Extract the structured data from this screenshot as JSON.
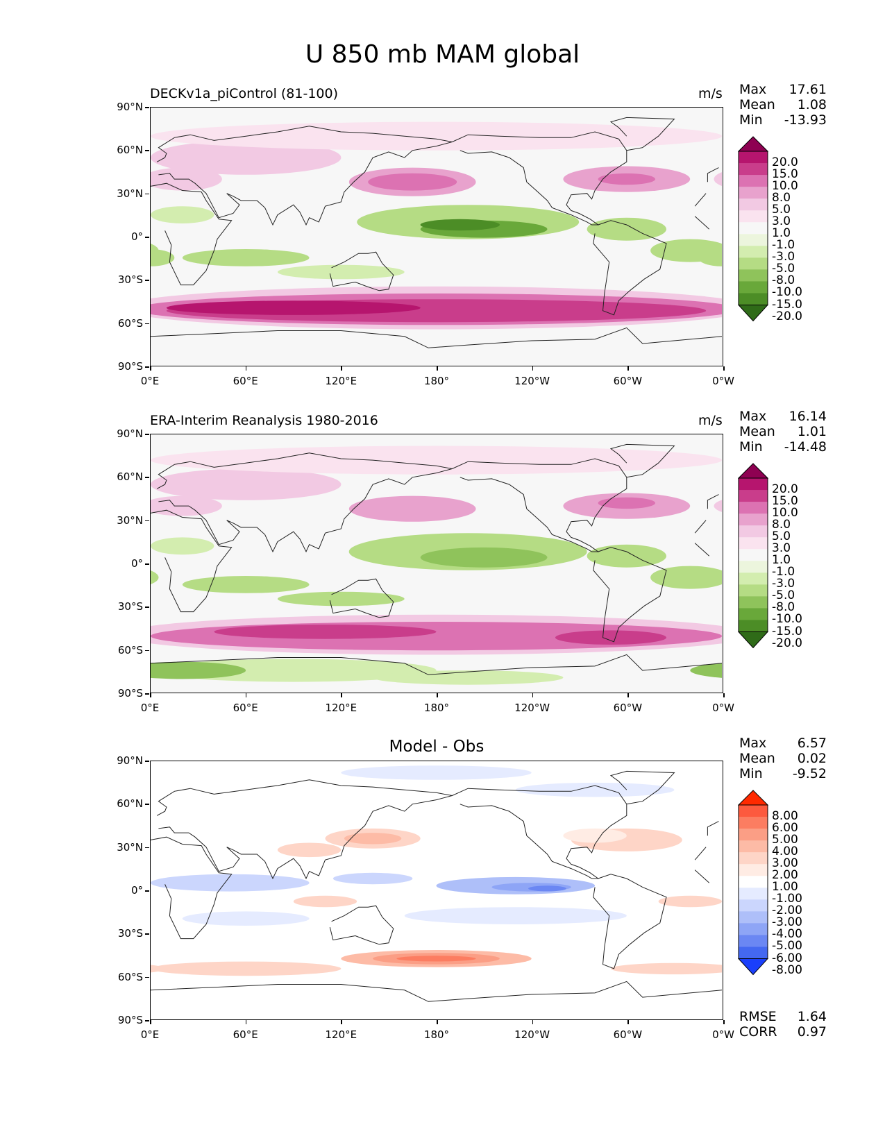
{
  "title": "U 850 mb MAM global",
  "y_ticks": [
    "90°N",
    "60°N",
    "30°N",
    "0°",
    "30°S",
    "60°S",
    "90°S"
  ],
  "x_ticks": [
    "0°E",
    "60°E",
    "120°E",
    "180°",
    "120°W",
    "60°W",
    "0°W"
  ],
  "panels": [
    {
      "name": "model",
      "label": "DECKv1a_piControl (81-100)",
      "units": "m/s",
      "stats": [
        {
          "k": "Max",
          "v": "17.61"
        },
        {
          "k": "Mean",
          "v": "1.08"
        },
        {
          "k": "Min",
          "v": "-13.93"
        }
      ],
      "colorbar": {
        "labels": [
          "20.0",
          "15.0",
          "10.0",
          "8.0",
          "5.0",
          "3.0",
          "1.0",
          "-1.0",
          "-3.0",
          "-5.0",
          "-8.0",
          "-10.0",
          "-15.0",
          "-20.0"
        ],
        "colors": [
          "#8e0152",
          "#b6156e",
          "#c93d8b",
          "#dc72b2",
          "#e8a2cd",
          "#f2c9e3",
          "#fae3ef",
          "#f7f7f7",
          "#ecf5dd",
          "#d3edaf",
          "#b5dc84",
          "#8fc35b",
          "#69a83a",
          "#4c8d26",
          "#2f6b18"
        ]
      }
    },
    {
      "name": "obs",
      "label": "ERA-Interim Reanalysis 1980-2016",
      "units": "m/s",
      "stats": [
        {
          "k": "Max",
          "v": "16.14"
        },
        {
          "k": "Mean",
          "v": "1.01"
        },
        {
          "k": "Min",
          "v": "-14.48"
        }
      ],
      "colorbar": {
        "labels": [
          "20.0",
          "15.0",
          "10.0",
          "8.0",
          "5.0",
          "3.0",
          "1.0",
          "-1.0",
          "-3.0",
          "-5.0",
          "-8.0",
          "-10.0",
          "-15.0",
          "-20.0"
        ],
        "colors": [
          "#8e0152",
          "#b6156e",
          "#c93d8b",
          "#dc72b2",
          "#e8a2cd",
          "#f2c9e3",
          "#fae3ef",
          "#f7f7f7",
          "#ecf5dd",
          "#d3edaf",
          "#b5dc84",
          "#8fc35b",
          "#69a83a",
          "#4c8d26",
          "#2f6b18"
        ]
      }
    },
    {
      "name": "diff",
      "label": "Model - Obs",
      "units": "",
      "stats": [
        {
          "k": "Max",
          "v": "6.57"
        },
        {
          "k": "Mean",
          "v": "0.02"
        },
        {
          "k": "Min",
          "v": "-9.52"
        }
      ],
      "extra_stats": [
        {
          "k": "RMSE",
          "v": "1.64"
        },
        {
          "k": "CORR",
          "v": "0.97"
        }
      ],
      "colorbar": {
        "labels": [
          "8.00",
          "6.00",
          "5.00",
          "4.00",
          "3.00",
          "2.00",
          "1.00",
          "-1.00",
          "-2.00",
          "-3.00",
          "-4.00",
          "-5.00",
          "-6.00",
          "-8.00"
        ],
        "colors": [
          "#ff2a00",
          "#fd5a3e",
          "#fc7d61",
          "#fb9e85",
          "#fdbba6",
          "#fed5c7",
          "#ffece4",
          "#ffffff",
          "#e5ebff",
          "#cbd6fd",
          "#aebff9",
          "#8ea5f6",
          "#6b87f3",
          "#4468f0",
          "#1a3ffb"
        ]
      }
    }
  ]
}
